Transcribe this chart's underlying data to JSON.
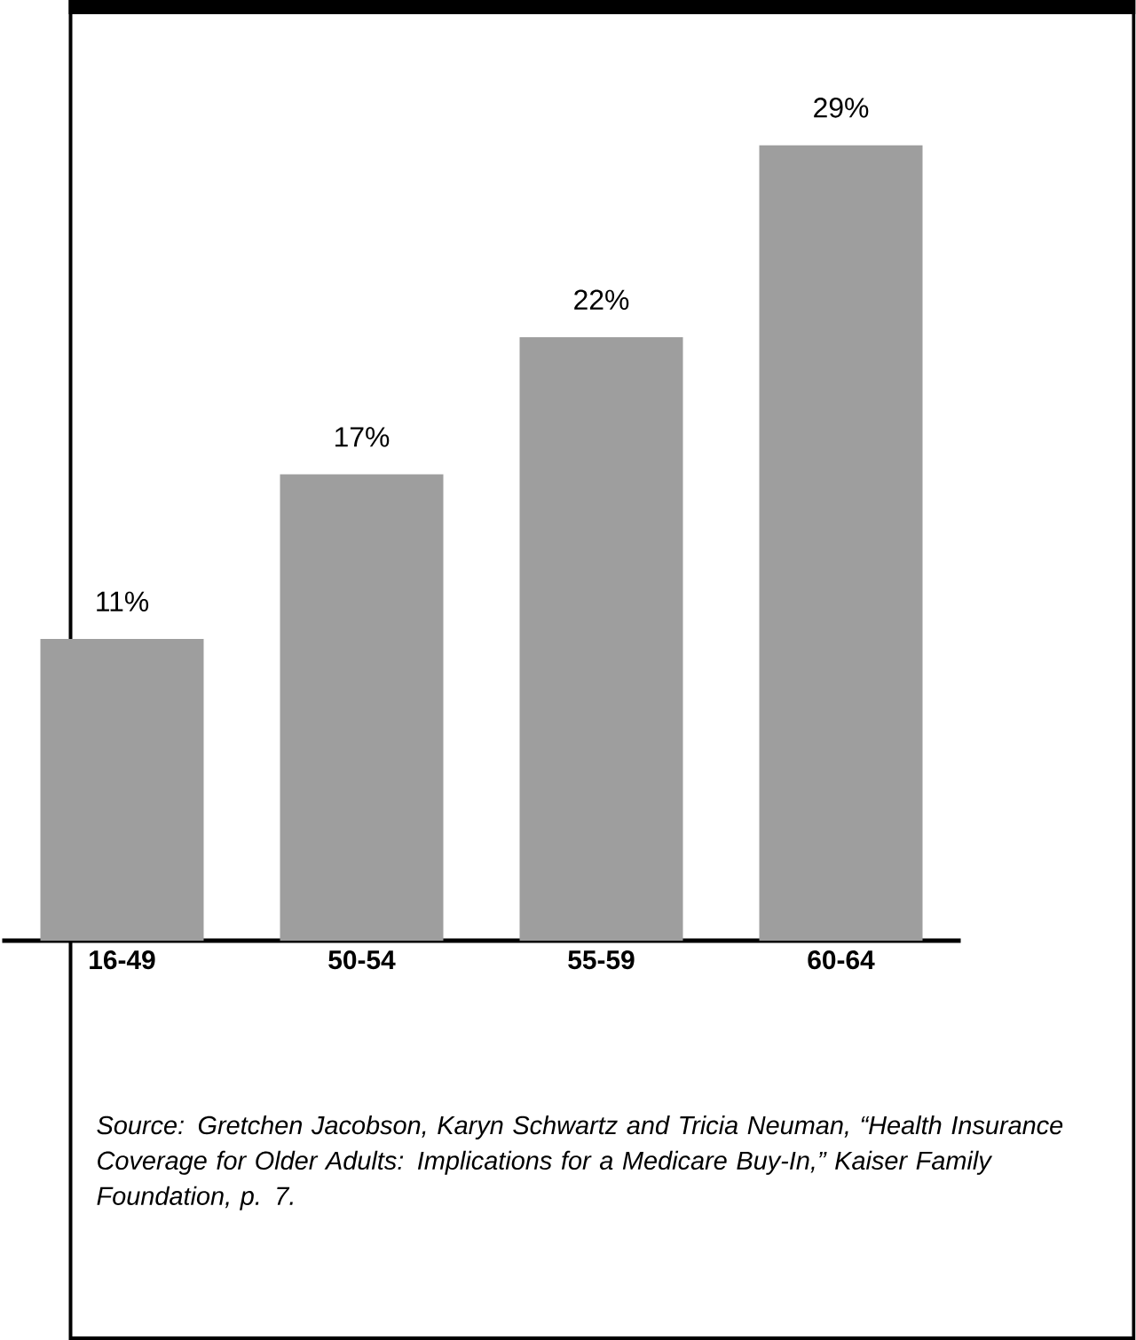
{
  "chart_data": {
    "type": "bar",
    "categories": [
      "16-49",
      "50-54",
      "55-59",
      "60-64"
    ],
    "values": [
      11,
      17,
      22,
      29
    ],
    "value_labels": [
      "11%",
      "17%",
      "22%",
      "29%"
    ],
    "color": "#9e9e9e",
    "annotations": [
      "Source: Gretchen Jacobson, Karyn Schwartz and Tricia Neuman, “Health Insurance Coverage for Older Adults: Implications for a Medicare Buy-In,” Kaiser Family Foundation, p. 7."
    ]
  }
}
